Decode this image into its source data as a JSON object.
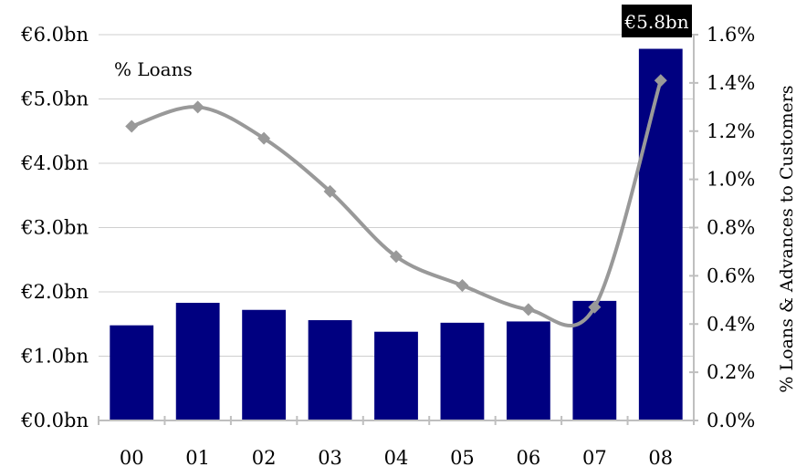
{
  "chart_data": {
    "type": "bar",
    "categories": [
      "00",
      "01",
      "02",
      "03",
      "04",
      "05",
      "06",
      "07",
      "08"
    ],
    "series": [
      {
        "type": "bar",
        "axis": "left",
        "color": "#000080",
        "values": [
          1.48,
          1.83,
          1.72,
          1.56,
          1.38,
          1.52,
          1.54,
          1.86,
          5.78
        ]
      },
      {
        "type": "line",
        "axis": "right",
        "color": "#999999",
        "values": [
          1.22,
          1.3,
          1.17,
          0.95,
          0.68,
          0.56,
          0.46,
          0.47,
          1.41
        ]
      }
    ],
    "y_left": {
      "min": 0,
      "max": 6,
      "ticks": [
        0,
        1,
        2,
        3,
        4,
        5,
        6
      ],
      "tick_labels": [
        "€0.0bn",
        "€1.0bn",
        "€2.0bn",
        "€3.0bn",
        "€4.0bn",
        "€5.0bn",
        "€6.0bn"
      ]
    },
    "y_right": {
      "min": 0,
      "max": 1.6,
      "ticks": [
        0,
        0.2,
        0.4,
        0.6,
        0.8,
        1.0,
        1.2,
        1.4,
        1.6
      ],
      "tick_labels": [
        "0.0%",
        "0.2%",
        "0.4%",
        "0.6%",
        "0.8%",
        "1.0%",
        "1.2%",
        "1.4%",
        "1.6%"
      ],
      "label": "% Loans & Advances to Customers"
    },
    "annotations": {
      "line_label": "% Loans",
      "callout": "€5.8bn"
    },
    "grid": true
  }
}
